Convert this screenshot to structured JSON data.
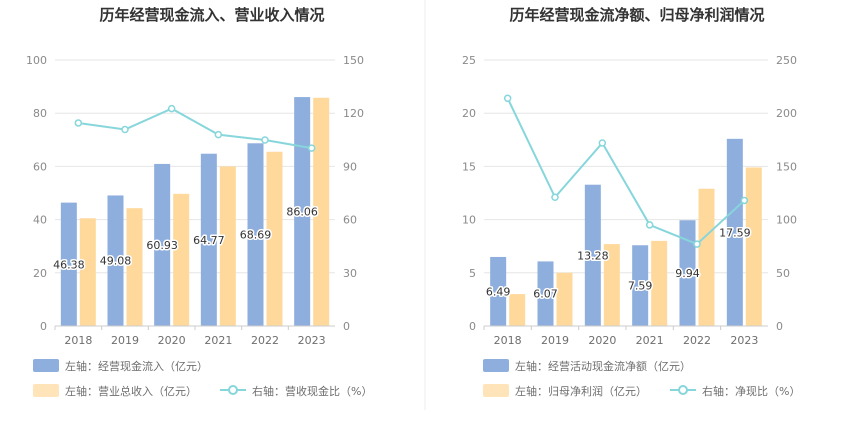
{
  "colors": {
    "bar_left": "#8EAEDE",
    "bar_right": "#FFD99C",
    "line": "#86D6DB",
    "grid": "#e6e6e6",
    "divider": "#eeeeee"
  },
  "chart_data": [
    {
      "type": "bar",
      "title": "历年经营现金流入、营业收入情况",
      "categories": [
        "2018",
        "2019",
        "2020",
        "2021",
        "2022",
        "2023"
      ],
      "left_axis": {
        "ticks": [
          "0",
          "20",
          "40",
          "60",
          "80",
          "100"
        ],
        "ylim": [
          0,
          100
        ]
      },
      "right_axis": {
        "ticks": [
          "0",
          "30",
          "60",
          "90",
          "120",
          "150"
        ],
        "ylim": [
          0,
          150
        ]
      },
      "series": [
        {
          "name": "左轴：经营现金流入（亿元）",
          "type": "bar",
          "axis": "left",
          "values": [
            46.38,
            49.08,
            60.93,
            64.77,
            68.69,
            86.06
          ],
          "labels": [
            "46.38",
            "49.08",
            "60.93",
            "64.77",
            "68.69",
            "86.06"
          ]
        },
        {
          "name": "左轴：营业总收入（亿元）",
          "type": "bar",
          "axis": "left",
          "values": [
            40.5,
            44.3,
            49.7,
            60.0,
            65.5,
            85.8
          ]
        },
        {
          "name": "右轴：营收现金比（%）",
          "type": "line",
          "axis": "right",
          "values": [
            114.5,
            110.8,
            122.6,
            107.9,
            104.9,
            100.3
          ]
        }
      ]
    },
    {
      "type": "bar",
      "title": "历年经营现金流净额、归母净利润情况",
      "categories": [
        "2018",
        "2019",
        "2020",
        "2021",
        "2022",
        "2023"
      ],
      "left_axis": {
        "ticks": [
          "0",
          "5",
          "10",
          "15",
          "20",
          "25"
        ],
        "ylim": [
          0,
          25
        ]
      },
      "right_axis": {
        "ticks": [
          "0",
          "50",
          "100",
          "150",
          "200",
          "250"
        ],
        "ylim": [
          0,
          250
        ]
      },
      "series": [
        {
          "name": "左轴：经营活动现金流净额（亿元）",
          "type": "bar",
          "axis": "left",
          "values": [
            6.49,
            6.07,
            13.28,
            7.59,
            9.94,
            17.59
          ],
          "labels": [
            "6.49",
            "6.07",
            "13.28",
            "7.59",
            "9.94",
            "17.59"
          ]
        },
        {
          "name": "左轴：归母净利润（亿元）",
          "type": "bar",
          "axis": "left",
          "values": [
            3.0,
            5.0,
            7.7,
            8.0,
            12.9,
            14.9
          ]
        },
        {
          "name": "右轴：净现比（%）",
          "type": "line",
          "axis": "right",
          "values": [
            214,
            121,
            172,
            95,
            77,
            118
          ]
        }
      ]
    }
  ]
}
